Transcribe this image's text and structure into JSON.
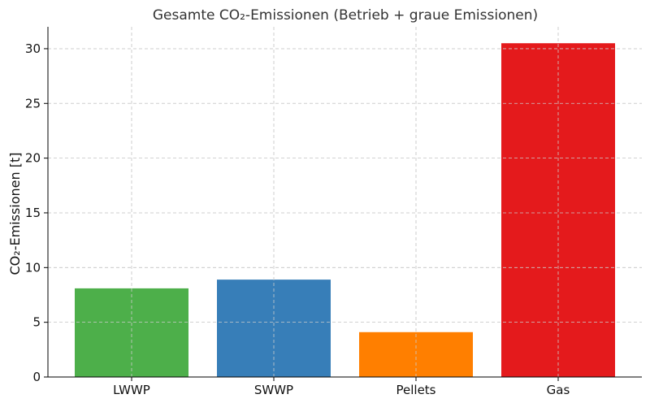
{
  "chart_data": {
    "type": "bar",
    "title": "Gesamte CO₂-Emissionen (Betrieb + graue Emissionen)",
    "xlabel": "",
    "ylabel": "CO₂-Emissionen [t]",
    "categories": [
      "LWWP",
      "SWWP",
      "Pellets",
      "Gas"
    ],
    "values": [
      8.1,
      8.9,
      4.1,
      30.5
    ],
    "colors": [
      "#4daf4a",
      "#377eb8",
      "#ff7f00",
      "#e41a1c"
    ],
    "ylim": [
      0,
      32
    ],
    "yticks": [
      0,
      5,
      10,
      15,
      20,
      25,
      30
    ],
    "grid": true,
    "legend": "none"
  }
}
